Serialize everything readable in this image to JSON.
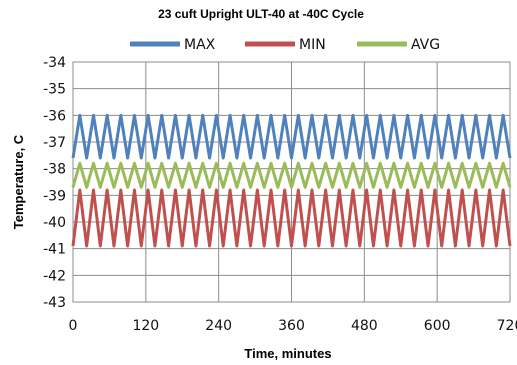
{
  "chart_data": {
    "type": "line",
    "title": "23 cuft Upright ULT-40 at -40C Cycle",
    "xlabel": "Time, minutes",
    "ylabel": "Temperature, C",
    "xlim": [
      0,
      720
    ],
    "ylim": [
      -43,
      -34
    ],
    "x_ticks": [
      0,
      120,
      240,
      360,
      480,
      600,
      720
    ],
    "x_tick_labels": [
      "0",
      "120",
      "240",
      "360",
      "480",
      "600",
      "720"
    ],
    "y_ticks": [
      -34,
      -35,
      -36,
      -37,
      -38,
      -39,
      -40,
      -41,
      -42,
      -43
    ],
    "y_tick_labels": [
      "-34",
      "-35",
      "-36",
      "-37",
      "-38",
      "-39",
      "-40",
      "-41",
      "-42",
      "-43"
    ],
    "grid": true,
    "legend_position": "top",
    "cycle_period_minutes": 22.5,
    "series": [
      {
        "name": "MAX",
        "color": "#4F81BD",
        "peak": -36.0,
        "trough": -37.6
      },
      {
        "name": "MIN",
        "color": "#C0504D",
        "peak": -38.8,
        "trough": -40.9
      },
      {
        "name": "AVG",
        "color": "#9BBB59",
        "peak": -37.8,
        "trough": -38.7
      }
    ]
  }
}
